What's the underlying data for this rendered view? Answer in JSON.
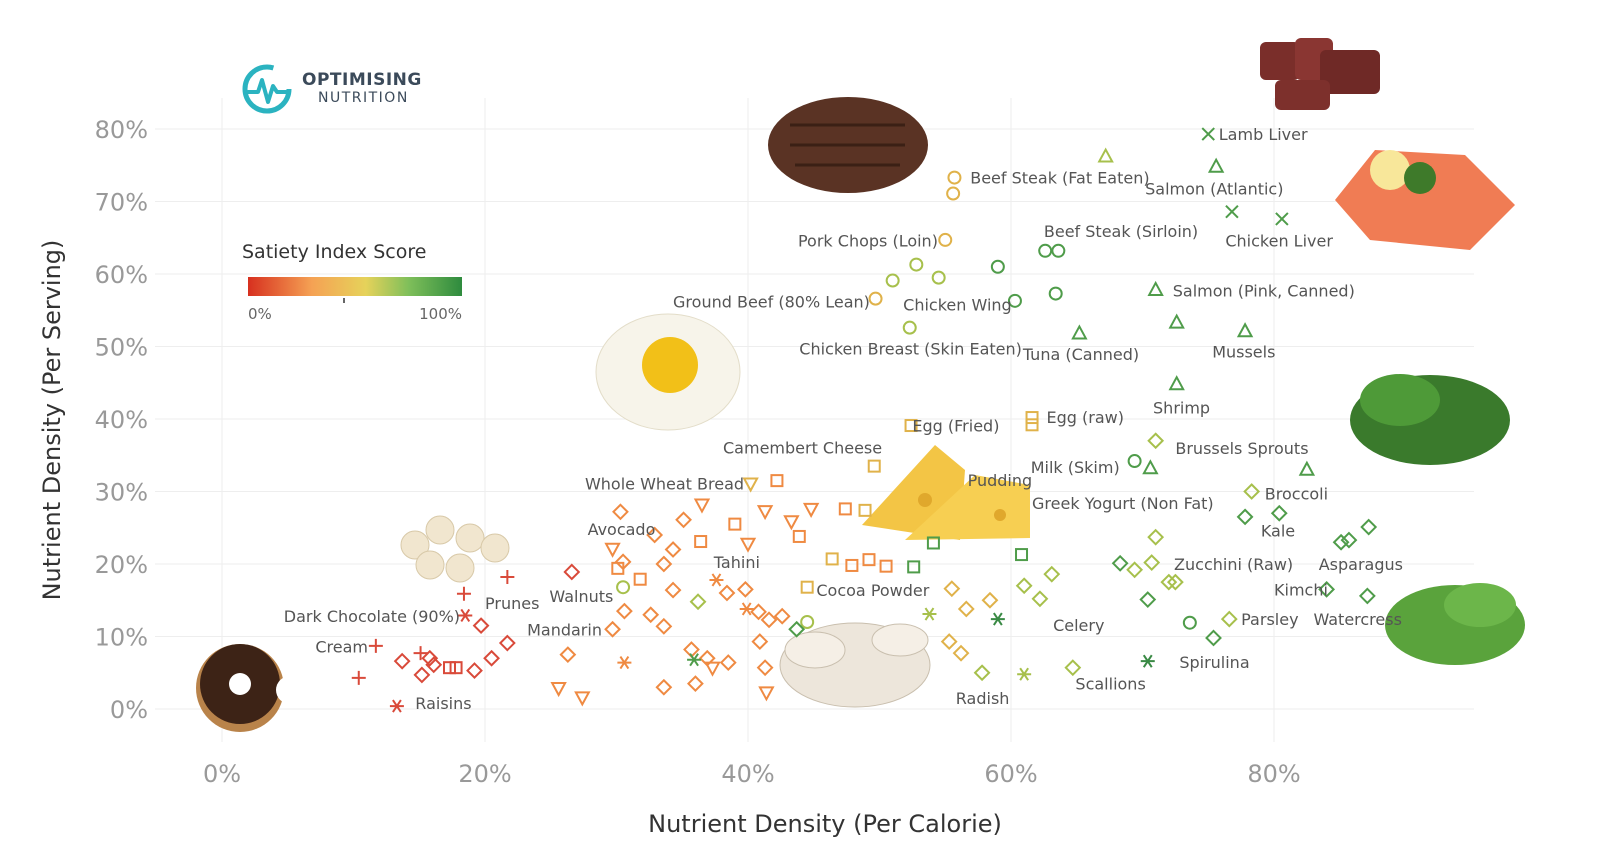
{
  "brand": {
    "line1": "OPTIMISING",
    "line2": "NUTRITION",
    "accent": "#2bb3c0"
  },
  "chart_data": {
    "type": "scatter",
    "xlabel": "Nutrient Density (Per Calorie)",
    "ylabel": "Nutrient Density (Per Serving)",
    "xlim": [
      0,
      96
    ],
    "ylim": [
      -3,
      82
    ],
    "xticks": [
      0,
      20,
      40,
      60,
      80
    ],
    "yticks": [
      0,
      10,
      20,
      30,
      40,
      50,
      60,
      70,
      80
    ],
    "grid": true,
    "legend": {
      "title": "Satiety Index Score",
      "min_label": "0%",
      "max_label": "100%",
      "colors": [
        "#d7301f",
        "#f5a254",
        "#e6d25a",
        "#7fbf5a",
        "#2e8b3e"
      ]
    },
    "colors": {
      "red": "#d94a3a",
      "orange": "#ef8a42",
      "gold": "#e0b24a",
      "yellowgreen": "#a7c04c",
      "green": "#4f9c4a",
      "darkgreen": "#3a8a45"
    },
    "labels": [
      {
        "text": "Lamb Liver",
        "x": 75.8,
        "y": 79.3
      },
      {
        "text": "Beef Steak (Fat Eaten)",
        "x": 56.9,
        "y": 73.3
      },
      {
        "text": "Salmon (Atlantic)",
        "x": 70.2,
        "y": 71.8
      },
      {
        "text": "Pork Chops (Loin)",
        "x": 43.8,
        "y": 64.6
      },
      {
        "text": "Beef Steak (Sirloin)",
        "x": 62.5,
        "y": 65.9
      },
      {
        "text": "Chicken Liver",
        "x": 76.3,
        "y": 64.6
      },
      {
        "text": "Ground Beef (80% Lean)",
        "x": 34.3,
        "y": 56.2
      },
      {
        "text": "Chicken Wing",
        "x": 51.8,
        "y": 55.8
      },
      {
        "text": "Salmon (Pink, Canned)",
        "x": 72.3,
        "y": 57.7
      },
      {
        "text": "Chicken Breast (Skin Eaten)",
        "x": 43.9,
        "y": 49.7
      },
      {
        "text": "Tuna (Canned)",
        "x": 60.9,
        "y": 49.0
      },
      {
        "text": "Mussels",
        "x": 75.3,
        "y": 49.3
      },
      {
        "text": "Shrimp",
        "x": 70.8,
        "y": 41.6
      },
      {
        "text": "Egg (Fried)",
        "x": 52.5,
        "y": 39.1
      },
      {
        "text": "Egg (raw)",
        "x": 62.7,
        "y": 40.3
      },
      {
        "text": "Camembert Cheese",
        "x": 38.1,
        "y": 36.1
      },
      {
        "text": "Brussels Sprouts",
        "x": 72.5,
        "y": 36.0
      },
      {
        "text": "Milk (Skim)",
        "x": 61.5,
        "y": 33.4
      },
      {
        "text": "Pudding",
        "x": 56.7,
        "y": 31.6
      },
      {
        "text": "Whole Wheat Bread",
        "x": 27.6,
        "y": 31.1
      },
      {
        "text": "Broccoli",
        "x": 79.3,
        "y": 29.7
      },
      {
        "text": "Greek Yogurt (Non Fat)",
        "x": 61.6,
        "y": 28.4
      },
      {
        "text": "Avocado",
        "x": 27.8,
        "y": 24.8
      },
      {
        "text": "Tahini",
        "x": 37.4,
        "y": 20.3
      },
      {
        "text": "Kale",
        "x": 79.0,
        "y": 24.6
      },
      {
        "text": "Zucchini (Raw)",
        "x": 72.4,
        "y": 20.0
      },
      {
        "text": "Asparagus",
        "x": 83.4,
        "y": 20.0
      },
      {
        "text": "Kimchi",
        "x": 80.0,
        "y": 16.5
      },
      {
        "text": "Walnuts",
        "x": 24.9,
        "y": 15.6
      },
      {
        "text": "Cocoa Powder",
        "x": 45.2,
        "y": 16.4
      },
      {
        "text": "Prunes",
        "x": 20.0,
        "y": 14.6
      },
      {
        "text": "Dark Chocolate (90%)",
        "x": 4.7,
        "y": 12.8
      },
      {
        "text": "Mandarin",
        "x": 23.2,
        "y": 11.0
      },
      {
        "text": "Celery",
        "x": 63.2,
        "y": 11.6
      },
      {
        "text": "Parsley",
        "x": 77.5,
        "y": 12.4
      },
      {
        "text": "Watercress",
        "x": 83.0,
        "y": 12.4
      },
      {
        "text": "Cream",
        "x": 7.1,
        "y": 8.6
      },
      {
        "text": "Spirulina",
        "x": 72.8,
        "y": 6.5
      },
      {
        "text": "Scallions",
        "x": 64.9,
        "y": 3.5
      },
      {
        "text": "Raisins",
        "x": 14.7,
        "y": 0.8
      },
      {
        "text": "Radish",
        "x": 55.8,
        "y": 1.5
      }
    ],
    "points": [
      {
        "x": 75.0,
        "y": 79.3,
        "s": "x",
        "c": "green"
      },
      {
        "x": 76.8,
        "y": 68.6,
        "s": "x",
        "c": "green"
      },
      {
        "x": 80.6,
        "y": 67.6,
        "s": "x",
        "c": "green"
      },
      {
        "x": 67.2,
        "y": 76.2,
        "s": "tri",
        "c": "yellowgreen"
      },
      {
        "x": 75.6,
        "y": 74.8,
        "s": "tri",
        "c": "green"
      },
      {
        "x": 71.0,
        "y": 57.8,
        "s": "tri",
        "c": "green"
      },
      {
        "x": 72.6,
        "y": 53.3,
        "s": "tri",
        "c": "green"
      },
      {
        "x": 77.8,
        "y": 52.1,
        "s": "tri",
        "c": "green"
      },
      {
        "x": 65.2,
        "y": 51.8,
        "s": "tri",
        "c": "green"
      },
      {
        "x": 72.6,
        "y": 44.8,
        "s": "tri",
        "c": "green"
      },
      {
        "x": 70.6,
        "y": 33.2,
        "s": "tri",
        "c": "green"
      },
      {
        "x": 82.5,
        "y": 33.0,
        "s": "tri",
        "c": "green"
      },
      {
        "x": 55.7,
        "y": 73.3,
        "s": "circle",
        "c": "gold"
      },
      {
        "x": 55.6,
        "y": 71.1,
        "s": "circle",
        "c": "gold"
      },
      {
        "x": 55.0,
        "y": 64.7,
        "s": "circle",
        "c": "gold"
      },
      {
        "x": 62.6,
        "y": 63.2,
        "s": "circle",
        "c": "green"
      },
      {
        "x": 63.6,
        "y": 63.2,
        "s": "circle",
        "c": "green"
      },
      {
        "x": 52.8,
        "y": 61.3,
        "s": "circle",
        "c": "yellowgreen"
      },
      {
        "x": 59.0,
        "y": 61.0,
        "s": "circle",
        "c": "green"
      },
      {
        "x": 51.0,
        "y": 59.1,
        "s": "circle",
        "c": "yellowgreen"
      },
      {
        "x": 54.5,
        "y": 59.5,
        "s": "circle",
        "c": "yellowgreen"
      },
      {
        "x": 49.7,
        "y": 56.6,
        "s": "circle",
        "c": "gold"
      },
      {
        "x": 60.3,
        "y": 56.3,
        "s": "circle",
        "c": "green"
      },
      {
        "x": 63.4,
        "y": 57.3,
        "s": "circle",
        "c": "green"
      },
      {
        "x": 52.3,
        "y": 52.6,
        "s": "circle",
        "c": "yellowgreen"
      },
      {
        "x": 69.4,
        "y": 34.2,
        "s": "circle",
        "c": "green"
      },
      {
        "x": 73.6,
        "y": 11.9,
        "s": "circle",
        "c": "green"
      },
      {
        "x": 30.5,
        "y": 16.8,
        "s": "circle",
        "c": "yellowgreen"
      },
      {
        "x": 44.5,
        "y": 12.0,
        "s": "circle",
        "c": "yellowgreen"
      },
      {
        "x": 52.4,
        "y": 39.1,
        "s": "square",
        "c": "gold"
      },
      {
        "x": 61.6,
        "y": 40.2,
        "s": "square",
        "c": "gold"
      },
      {
        "x": 61.6,
        "y": 39.2,
        "s": "square",
        "c": "gold"
      },
      {
        "x": 49.6,
        "y": 33.5,
        "s": "square",
        "c": "gold"
      },
      {
        "x": 42.2,
        "y": 31.5,
        "s": "square",
        "c": "orange"
      },
      {
        "x": 39.0,
        "y": 25.5,
        "s": "square",
        "c": "orange"
      },
      {
        "x": 43.9,
        "y": 23.8,
        "s": "square",
        "c": "orange"
      },
      {
        "x": 47.4,
        "y": 27.6,
        "s": "square",
        "c": "orange"
      },
      {
        "x": 48.9,
        "y": 27.4,
        "s": "square",
        "c": "gold"
      },
      {
        "x": 46.4,
        "y": 20.7,
        "s": "square",
        "c": "gold"
      },
      {
        "x": 47.9,
        "y": 19.8,
        "s": "square",
        "c": "orange"
      },
      {
        "x": 49.2,
        "y": 20.6,
        "s": "square",
        "c": "orange"
      },
      {
        "x": 50.5,
        "y": 19.7,
        "s": "square",
        "c": "orange"
      },
      {
        "x": 44.5,
        "y": 16.8,
        "s": "square",
        "c": "gold"
      },
      {
        "x": 52.6,
        "y": 19.6,
        "s": "square",
        "c": "green"
      },
      {
        "x": 54.1,
        "y": 22.9,
        "s": "square",
        "c": "green"
      },
      {
        "x": 60.8,
        "y": 21.3,
        "s": "square",
        "c": "green"
      },
      {
        "x": 31.8,
        "y": 17.9,
        "s": "square",
        "c": "orange"
      },
      {
        "x": 17.3,
        "y": 5.7,
        "s": "square",
        "c": "red"
      },
      {
        "x": 17.8,
        "y": 5.7,
        "s": "square",
        "c": "red"
      },
      {
        "x": 30.1,
        "y": 19.4,
        "s": "square",
        "c": "orange"
      },
      {
        "x": 36.4,
        "y": 23.1,
        "s": "square",
        "c": "orange"
      },
      {
        "x": 71.0,
        "y": 37.0,
        "s": "diamond",
        "c": "yellowgreen"
      },
      {
        "x": 78.3,
        "y": 30.0,
        "s": "diamond",
        "c": "yellowgreen"
      },
      {
        "x": 77.8,
        "y": 26.5,
        "s": "diamond",
        "c": "green"
      },
      {
        "x": 80.4,
        "y": 27.0,
        "s": "diamond",
        "c": "green"
      },
      {
        "x": 87.2,
        "y": 25.1,
        "s": "diamond",
        "c": "green"
      },
      {
        "x": 85.7,
        "y": 23.3,
        "s": "diamond",
        "c": "green"
      },
      {
        "x": 85.1,
        "y": 23.0,
        "s": "diamond",
        "c": "green"
      },
      {
        "x": 71.0,
        "y": 23.7,
        "s": "diamond",
        "c": "yellowgreen"
      },
      {
        "x": 68.3,
        "y": 20.1,
        "s": "diamond",
        "c": "green"
      },
      {
        "x": 69.4,
        "y": 19.2,
        "s": "diamond",
        "c": "yellowgreen"
      },
      {
        "x": 70.7,
        "y": 20.2,
        "s": "diamond",
        "c": "yellowgreen"
      },
      {
        "x": 72.0,
        "y": 17.5,
        "s": "diamond",
        "c": "yellowgreen"
      },
      {
        "x": 72.5,
        "y": 17.5,
        "s": "diamond",
        "c": "yellowgreen"
      },
      {
        "x": 84.0,
        "y": 16.5,
        "s": "diamond",
        "c": "green"
      },
      {
        "x": 87.1,
        "y": 15.6,
        "s": "diamond",
        "c": "green"
      },
      {
        "x": 70.4,
        "y": 15.1,
        "s": "diamond",
        "c": "green"
      },
      {
        "x": 76.6,
        "y": 12.4,
        "s": "diamond",
        "c": "yellowgreen"
      },
      {
        "x": 75.4,
        "y": 9.8,
        "s": "diamond",
        "c": "green"
      },
      {
        "x": 63.1,
        "y": 18.6,
        "s": "diamond",
        "c": "yellowgreen"
      },
      {
        "x": 61.0,
        "y": 17.0,
        "s": "diamond",
        "c": "yellowgreen"
      },
      {
        "x": 62.2,
        "y": 15.2,
        "s": "diamond",
        "c": "yellowgreen"
      },
      {
        "x": 64.7,
        "y": 5.7,
        "s": "diamond",
        "c": "yellowgreen"
      },
      {
        "x": 57.8,
        "y": 5.0,
        "s": "diamond",
        "c": "yellowgreen"
      },
      {
        "x": 55.5,
        "y": 16.6,
        "s": "diamond",
        "c": "gold"
      },
      {
        "x": 56.6,
        "y": 13.8,
        "s": "diamond",
        "c": "gold"
      },
      {
        "x": 58.4,
        "y": 15.0,
        "s": "diamond",
        "c": "gold"
      },
      {
        "x": 43.7,
        "y": 11.0,
        "s": "diamond",
        "c": "green"
      },
      {
        "x": 36.2,
        "y": 14.8,
        "s": "diamond",
        "c": "yellowgreen"
      },
      {
        "x": 34.3,
        "y": 16.4,
        "s": "diamond",
        "c": "orange"
      },
      {
        "x": 38.4,
        "y": 16.0,
        "s": "diamond",
        "c": "orange"
      },
      {
        "x": 39.8,
        "y": 16.5,
        "s": "diamond",
        "c": "orange"
      },
      {
        "x": 40.8,
        "y": 13.4,
        "s": "diamond",
        "c": "orange"
      },
      {
        "x": 41.6,
        "y": 12.3,
        "s": "diamond",
        "c": "orange"
      },
      {
        "x": 42.6,
        "y": 12.8,
        "s": "diamond",
        "c": "orange"
      },
      {
        "x": 30.3,
        "y": 27.2,
        "s": "diamond",
        "c": "orange"
      },
      {
        "x": 32.9,
        "y": 24.0,
        "s": "diamond",
        "c": "orange"
      },
      {
        "x": 35.1,
        "y": 26.1,
        "s": "diamond",
        "c": "orange"
      },
      {
        "x": 34.3,
        "y": 22.0,
        "s": "diamond",
        "c": "orange"
      },
      {
        "x": 30.5,
        "y": 20.3,
        "s": "diamond",
        "c": "orange"
      },
      {
        "x": 33.6,
        "y": 20.0,
        "s": "diamond",
        "c": "orange"
      },
      {
        "x": 30.6,
        "y": 13.5,
        "s": "diamond",
        "c": "orange"
      },
      {
        "x": 29.7,
        "y": 11.0,
        "s": "diamond",
        "c": "orange"
      },
      {
        "x": 32.6,
        "y": 13.0,
        "s": "diamond",
        "c": "orange"
      },
      {
        "x": 26.6,
        "y": 18.9,
        "s": "diamond",
        "c": "red"
      },
      {
        "x": 26.3,
        "y": 7.5,
        "s": "diamond",
        "c": "orange"
      },
      {
        "x": 21.7,
        "y": 9.1,
        "s": "diamond",
        "c": "red"
      },
      {
        "x": 20.5,
        "y": 7.0,
        "s": "diamond",
        "c": "red"
      },
      {
        "x": 19.7,
        "y": 11.5,
        "s": "diamond",
        "c": "red"
      },
      {
        "x": 19.2,
        "y": 5.3,
        "s": "diamond",
        "c": "red"
      },
      {
        "x": 15.2,
        "y": 4.7,
        "s": "diamond",
        "c": "red"
      },
      {
        "x": 13.7,
        "y": 6.6,
        "s": "diamond",
        "c": "red"
      },
      {
        "x": 15.8,
        "y": 7.0,
        "s": "diamond",
        "c": "red"
      },
      {
        "x": 16.1,
        "y": 6.1,
        "s": "diamond",
        "c": "red"
      },
      {
        "x": 33.6,
        "y": 11.4,
        "s": "diamond",
        "c": "orange"
      },
      {
        "x": 35.7,
        "y": 8.2,
        "s": "diamond",
        "c": "orange"
      },
      {
        "x": 36.9,
        "y": 7.0,
        "s": "diamond",
        "c": "orange"
      },
      {
        "x": 38.5,
        "y": 6.4,
        "s": "diamond",
        "c": "orange"
      },
      {
        "x": 40.9,
        "y": 9.3,
        "s": "diamond",
        "c": "orange"
      },
      {
        "x": 33.6,
        "y": 3.0,
        "s": "diamond",
        "c": "orange"
      },
      {
        "x": 36.0,
        "y": 3.5,
        "s": "diamond",
        "c": "orange"
      },
      {
        "x": 41.3,
        "y": 5.7,
        "s": "diamond",
        "c": "orange"
      },
      {
        "x": 56.2,
        "y": 7.7,
        "s": "diamond",
        "c": "gold"
      },
      {
        "x": 55.3,
        "y": 9.3,
        "s": "diamond",
        "c": "gold"
      },
      {
        "x": 29.7,
        "y": 22.1,
        "s": "tri-down",
        "c": "orange"
      },
      {
        "x": 36.5,
        "y": 28.2,
        "s": "tri-down",
        "c": "orange"
      },
      {
        "x": 40.0,
        "y": 22.8,
        "s": "tri-down",
        "c": "orange"
      },
      {
        "x": 41.3,
        "y": 27.3,
        "s": "tri-down",
        "c": "orange"
      },
      {
        "x": 44.8,
        "y": 27.6,
        "s": "tri-down",
        "c": "orange"
      },
      {
        "x": 43.3,
        "y": 25.9,
        "s": "tri-down",
        "c": "orange"
      },
      {
        "x": 40.2,
        "y": 31.1,
        "s": "tri-down",
        "c": "gold"
      },
      {
        "x": 25.6,
        "y": 2.9,
        "s": "tri-down",
        "c": "orange"
      },
      {
        "x": 27.4,
        "y": 1.6,
        "s": "tri-down",
        "c": "orange"
      },
      {
        "x": 41.4,
        "y": 2.3,
        "s": "tri-down",
        "c": "orange"
      },
      {
        "x": 37.3,
        "y": 5.7,
        "s": "tri-down",
        "c": "orange"
      },
      {
        "x": 11.7,
        "y": 8.7,
        "s": "plus",
        "c": "red"
      },
      {
        "x": 10.4,
        "y": 4.3,
        "s": "plus",
        "c": "red"
      },
      {
        "x": 15.1,
        "y": 7.7,
        "s": "plus",
        "c": "red"
      },
      {
        "x": 18.4,
        "y": 15.9,
        "s": "plus",
        "c": "red"
      },
      {
        "x": 21.7,
        "y": 18.2,
        "s": "plus",
        "c": "red"
      },
      {
        "x": 13.3,
        "y": 0.4,
        "s": "star",
        "c": "red"
      },
      {
        "x": 18.5,
        "y": 12.9,
        "s": "star",
        "c": "red"
      },
      {
        "x": 30.6,
        "y": 6.4,
        "s": "star",
        "c": "orange"
      },
      {
        "x": 37.6,
        "y": 17.8,
        "s": "star",
        "c": "orange"
      },
      {
        "x": 35.9,
        "y": 6.8,
        "s": "star",
        "c": "green"
      },
      {
        "x": 53.8,
        "y": 13.1,
        "s": "star",
        "c": "yellowgreen"
      },
      {
        "x": 59.0,
        "y": 12.4,
        "s": "star",
        "c": "darkgreen"
      },
      {
        "x": 70.4,
        "y": 6.6,
        "s": "star",
        "c": "darkgreen"
      },
      {
        "x": 61.0,
        "y": 4.8,
        "s": "star",
        "c": "yellowgreen"
      },
      {
        "x": 39.9,
        "y": 13.8,
        "s": "star",
        "c": "orange"
      }
    ]
  }
}
